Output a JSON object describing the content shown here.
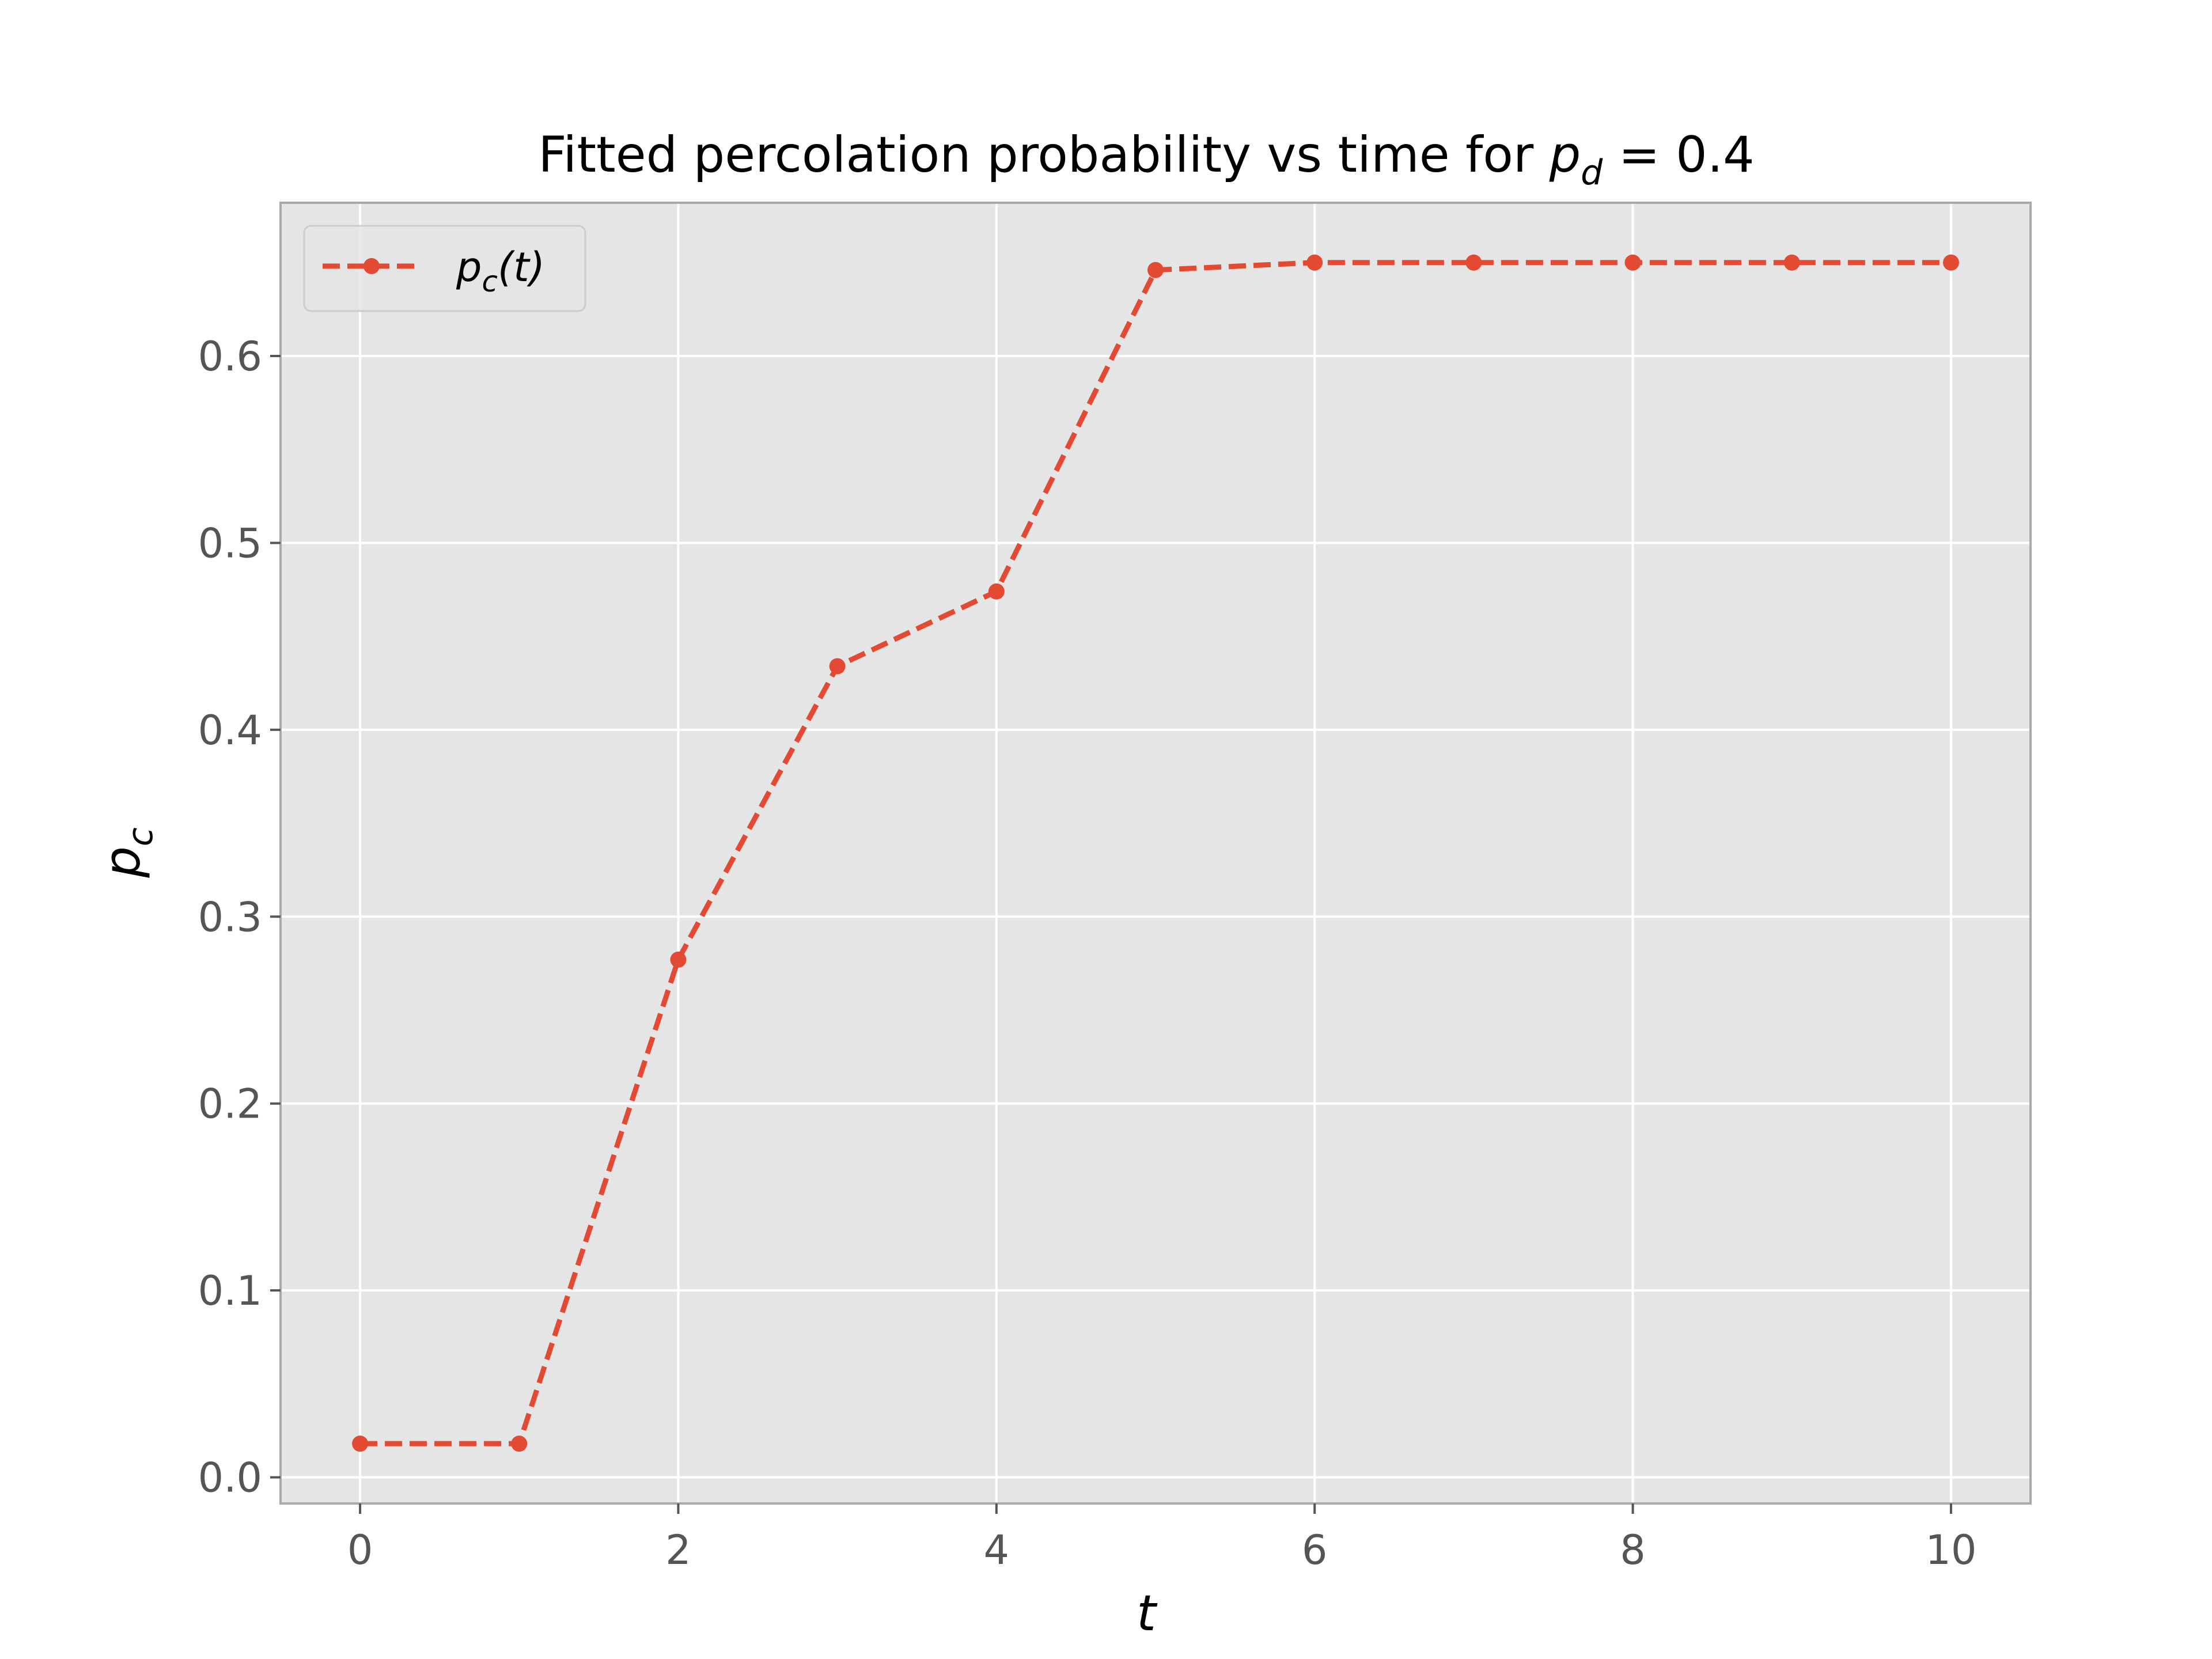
{
  "chart_data": {
    "type": "line",
    "title": "Fitted percolation probability vs time for ",
    "title_math": {
      "base": "p",
      "sub": "d",
      "rest": " = 0.4"
    },
    "xlabel": "t",
    "ylabel": {
      "base": "p",
      "sub": "c"
    },
    "xlim": [
      -0.5,
      10.5
    ],
    "ylim": [
      -0.014,
      0.682
    ],
    "xticks": [
      0,
      2,
      4,
      6,
      8,
      10
    ],
    "xtick_labels": [
      "0",
      "2",
      "4",
      "6",
      "8",
      "10"
    ],
    "yticks": [
      0.0,
      0.1,
      0.2,
      0.3,
      0.4,
      0.5,
      0.6
    ],
    "ytick_labels": [
      "0.0",
      "0.1",
      "0.2",
      "0.3",
      "0.4",
      "0.5",
      "0.6"
    ],
    "grid": true,
    "legend_position": "top-left",
    "series": [
      {
        "name": "p_c(t)",
        "legend_label": {
          "base": "p",
          "sub": "c",
          "rest": "(t)"
        },
        "line_style": "dashed",
        "marker": "circle",
        "color": "#E24A33",
        "x": [
          0,
          1,
          2,
          3,
          4,
          5,
          6,
          7,
          8,
          9,
          10
        ],
        "y": [
          0.018,
          0.018,
          0.277,
          0.434,
          0.474,
          0.646,
          0.65,
          0.65,
          0.65,
          0.65,
          0.65
        ]
      }
    ],
    "colors": {
      "axes_bg": "#E5E5E5",
      "grid": "#FFFFFF",
      "frame": "#AAAAAA",
      "tick": "#555555"
    }
  }
}
